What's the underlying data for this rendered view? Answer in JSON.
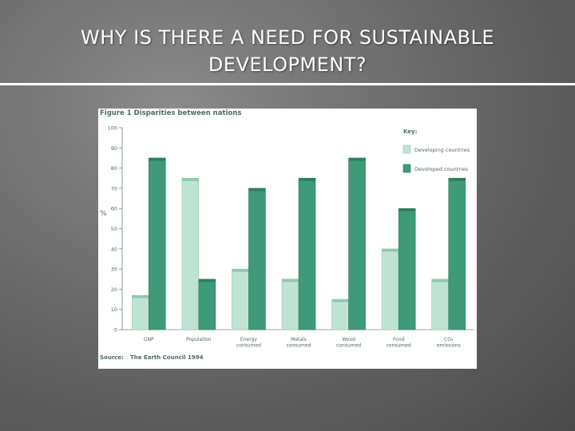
{
  "slide": {
    "title_line1": "WHY IS THERE A NEED FOR SUSTAINABLE",
    "title_line2": "DEVELOPMENT?"
  },
  "colors": {
    "developing": "#bfe3d3",
    "developed": "#3e9a78",
    "axis": "#6f8a80",
    "text": "#4f6b62"
  },
  "chart_data": {
    "type": "bar",
    "title": "Figure 1   Disparities between nations",
    "ylabel": "%",
    "ylim": [
      0,
      100
    ],
    "yticks": [
      0,
      10,
      20,
      30,
      40,
      50,
      60,
      70,
      80,
      90,
      100
    ],
    "categories": [
      [
        "GNP"
      ],
      [
        "Population"
      ],
      [
        "Energy",
        "consumed"
      ],
      [
        "Metals",
        "consumed"
      ],
      [
        "Wood",
        "consumed"
      ],
      [
        "Food",
        "consumed"
      ],
      [
        "CO₂",
        "emissions"
      ]
    ],
    "series": [
      {
        "name": "Developing countries",
        "values": [
          17,
          75,
          30,
          25,
          15,
          40,
          25
        ]
      },
      {
        "name": "Developed countries",
        "values": [
          85,
          25,
          70,
          75,
          85,
          60,
          75
        ]
      }
    ],
    "legend_title": "Key:",
    "legend_position": "top-right",
    "source_label": "Source:",
    "source_text": "The Earth Council 1994"
  }
}
